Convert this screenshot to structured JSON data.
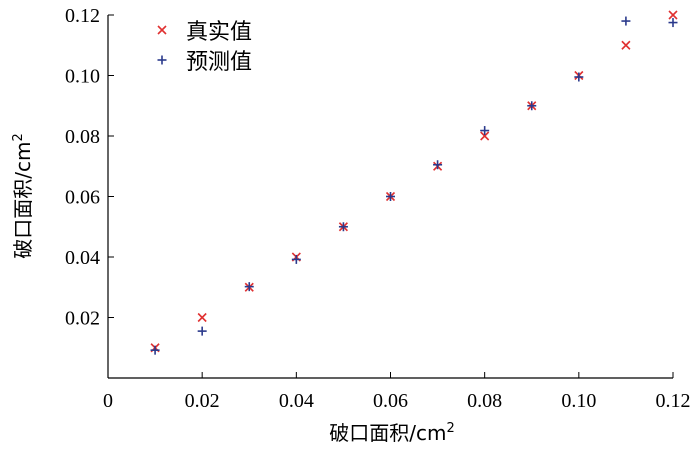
{
  "chart_data": {
    "type": "scatter",
    "title": "",
    "xlabel": "破口面积/cm",
    "xlabel_sup": "2",
    "ylabel": "破口面积/cm",
    "ylabel_sup": "2",
    "xlim": [
      0,
      0.12
    ],
    "ylim": [
      0,
      0.12
    ],
    "xticks": [
      0,
      0.02,
      0.04,
      0.06,
      0.08,
      0.1,
      0.12
    ],
    "xtick_labels": [
      "0",
      "0.02",
      "0.04",
      "0.06",
      "0.08",
      "0.10",
      "0.12"
    ],
    "yticks": [
      0.02,
      0.04,
      0.06,
      0.08,
      0.1,
      0.12
    ],
    "ytick_labels": [
      "0.02",
      "0.04",
      "0.06",
      "0.08",
      "0.10",
      "0.12"
    ],
    "grid": false,
    "legend_position": "top-left",
    "series": [
      {
        "name": "真实值",
        "marker": "x",
        "color": "#e03030",
        "x": [
          0.01,
          0.02,
          0.03,
          0.04,
          0.05,
          0.06,
          0.07,
          0.08,
          0.09,
          0.1,
          0.11,
          0.12
        ],
        "y": [
          0.01,
          0.02,
          0.03,
          0.04,
          0.05,
          0.06,
          0.07,
          0.08,
          0.09,
          0.1,
          0.11,
          0.12
        ]
      },
      {
        "name": "预测值",
        "marker": "+",
        "color": "#2b3a8c",
        "x": [
          0.01,
          0.02,
          0.03,
          0.04,
          0.05,
          0.06,
          0.07,
          0.08,
          0.09,
          0.1,
          0.11,
          0.12
        ],
        "y": [
          0.0092,
          0.0155,
          0.0302,
          0.0392,
          0.05,
          0.06,
          0.0705,
          0.0818,
          0.09,
          0.0995,
          0.118,
          0.1175
        ]
      }
    ]
  }
}
